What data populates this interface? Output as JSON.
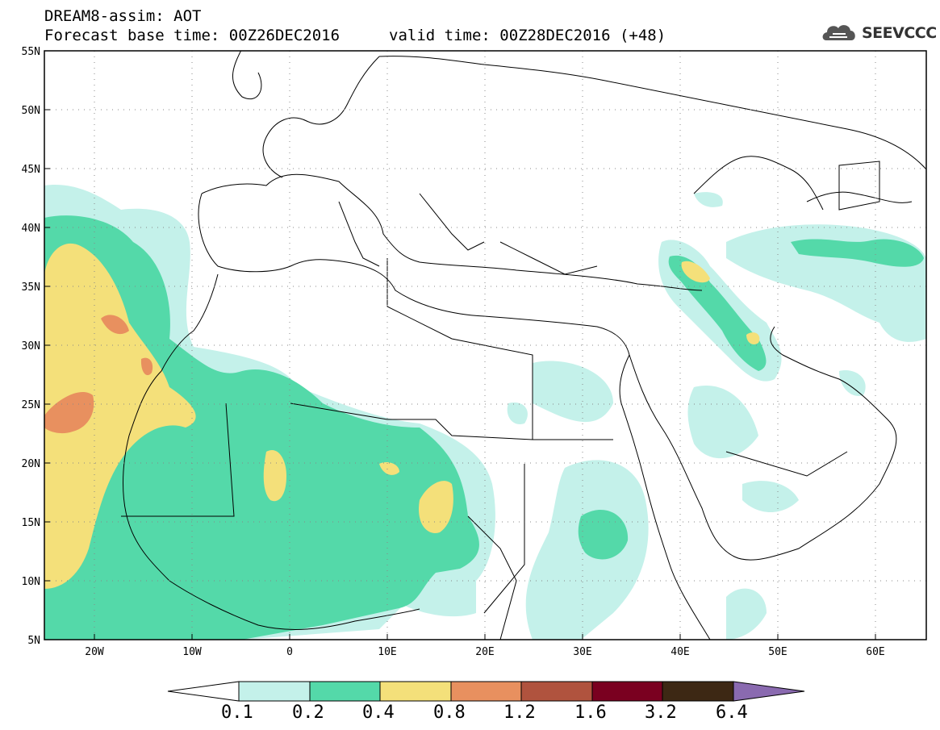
{
  "header": {
    "line1": "DREAM8-assim: AOT",
    "line2": "Forecast base time: 00Z26DEC2016",
    "valid": "valid time: 00Z28DEC2016 (+48)",
    "logo_text": "SEEVCCC"
  },
  "map": {
    "lon_labels": [
      "20W",
      "10W",
      "0",
      "10E",
      "20E",
      "30E",
      "40E",
      "50E",
      "60E"
    ],
    "lat_labels": [
      "55N",
      "50N",
      "45N",
      "40N",
      "35N",
      "30N",
      "25N",
      "20N",
      "15N",
      "10N",
      "5N"
    ]
  },
  "legend": {
    "colors": [
      "#ffffff",
      "#c4f1ea",
      "#54d9a9",
      "#f4e07a",
      "#e8905f",
      "#b0533e",
      "#7a0020",
      "#3d2814",
      "#8a6ab0"
    ],
    "labels": [
      "0.1",
      "0.2",
      "0.4",
      "0.8",
      "1.2",
      "1.6",
      "3.2",
      "6.4"
    ]
  },
  "colors": {
    "lvl1": "#c4f1ea",
    "lvl2": "#54d9a9",
    "lvl3": "#f4e07a",
    "lvl4": "#e8905f"
  }
}
